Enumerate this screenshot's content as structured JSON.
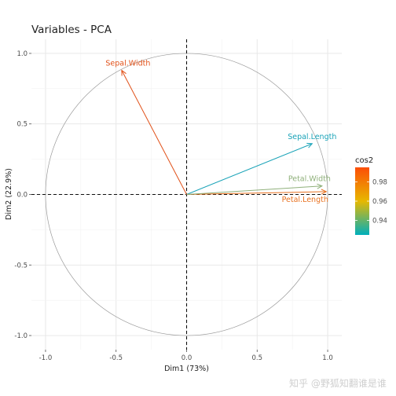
{
  "chart_data": {
    "type": "scatter",
    "title": "Variables - PCA",
    "xlabel": "Dim1 (73%)",
    "ylabel": "Dim2 (22.9%)",
    "xlim": [
      -1.0,
      1.0
    ],
    "ylim": [
      -1.0,
      1.0
    ],
    "x_ticks": [
      -1.0,
      -0.5,
      0.0,
      0.5,
      1.0
    ],
    "x_tick_labels": [
      "-1.0",
      "-0.5",
      "0.0",
      "0.5",
      "1.0"
    ],
    "y_ticks": [
      -1.0,
      -0.5,
      0.0,
      0.5,
      1.0
    ],
    "y_tick_labels": [
      "-1.0",
      "-0.5",
      "0.0",
      "0.5",
      "1.0"
    ],
    "grid": true,
    "unit_circle": true,
    "reference_lines": [
      0,
      0
    ],
    "variables": [
      {
        "name": "Sepal.Length",
        "x": 0.89,
        "y": 0.36,
        "cos2": 0.93,
        "color": "#1aa3b8"
      },
      {
        "name": "Sepal.Width",
        "x": -0.46,
        "y": 0.88,
        "cos2": 0.99,
        "color": "#e15119"
      },
      {
        "name": "Petal.Length",
        "x": 0.99,
        "y": 0.02,
        "cos2": 0.98,
        "color": "#e8711f"
      },
      {
        "name": "Petal.Width",
        "x": 0.96,
        "y": 0.06,
        "cos2": 0.94,
        "color": "#8fb07a"
      }
    ],
    "legend": {
      "title": "cos2",
      "position": "right",
      "ticks": [
        0.94,
        0.96,
        0.98
      ],
      "tick_labels": [
        "0.94",
        "0.96",
        "0.98"
      ],
      "range": [
        0.925,
        0.995
      ],
      "gradient": [
        "#00afbb",
        "#e7b800",
        "#fc4e07"
      ]
    }
  },
  "watermark": "知乎 @野狐知翻谁是谁"
}
